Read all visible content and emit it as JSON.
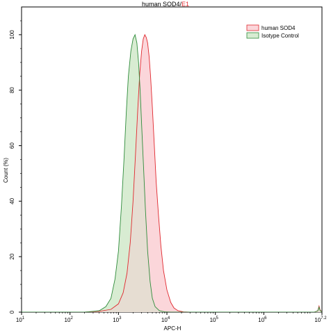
{
  "chart_data": {
    "type": "area",
    "title": "human SOD4",
    "title_separator": "/",
    "gate_label": "E1",
    "xlabel": "APC-H",
    "ylabel": "Count (%)",
    "x_scale": "log",
    "xlim": [
      10,
      15848932
    ],
    "ylim": [
      0,
      110
    ],
    "x_ticks": [
      {
        "value": 10,
        "base": "10",
        "exp": "1"
      },
      {
        "value": 100,
        "base": "10",
        "exp": "2"
      },
      {
        "value": 1000,
        "base": "10",
        "exp": "3"
      },
      {
        "value": 10000,
        "base": "10",
        "exp": "4"
      },
      {
        "value": 100000,
        "base": "10",
        "exp": "5"
      },
      {
        "value": 1000000,
        "base": "10",
        "exp": "6"
      },
      {
        "value": 15848932,
        "base": "10",
        "exp": "7.2"
      }
    ],
    "y_ticks": [
      0,
      20,
      40,
      60,
      80,
      100
    ],
    "grid": false,
    "legend_position": "top-right",
    "series": [
      {
        "name": "human SOD4",
        "line_color": "#e0282e",
        "fill_color": "#fbd6da",
        "points": [
          [
            10,
            0
          ],
          [
            200,
            0
          ],
          [
            400,
            0.3
          ],
          [
            700,
            1
          ],
          [
            1000,
            3
          ],
          [
            1250,
            7
          ],
          [
            1500,
            14
          ],
          [
            1750,
            25
          ],
          [
            2000,
            40
          ],
          [
            2250,
            57
          ],
          [
            2500,
            73
          ],
          [
            2750,
            86
          ],
          [
            3000,
            94
          ],
          [
            3250,
            98.5
          ],
          [
            3500,
            100
          ],
          [
            3750,
            99
          ],
          [
            4000,
            97
          ],
          [
            4300,
            92
          ],
          [
            4600,
            85
          ],
          [
            5000,
            74
          ],
          [
            5500,
            60
          ],
          [
            6000,
            47
          ],
          [
            6700,
            35
          ],
          [
            7500,
            24
          ],
          [
            8500,
            15
          ],
          [
            10000,
            8
          ],
          [
            12000,
            3.5
          ],
          [
            14000,
            1.5
          ],
          [
            17000,
            0.5
          ],
          [
            22000,
            0.1
          ],
          [
            30000,
            0
          ],
          [
            11000000,
            0
          ],
          [
            13000000,
            0.5
          ],
          [
            13800000,
            2.2
          ],
          [
            14500000,
            0.8
          ],
          [
            15848932,
            0
          ]
        ]
      },
      {
        "name": "Isotype Control",
        "line_color": "#2e8b3a",
        "fill_color": "#d8ecd2",
        "points": [
          [
            10,
            0
          ],
          [
            200,
            0
          ],
          [
            400,
            0.5
          ],
          [
            550,
            2
          ],
          [
            700,
            5
          ],
          [
            850,
            12
          ],
          [
            1000,
            22
          ],
          [
            1150,
            38
          ],
          [
            1300,
            55
          ],
          [
            1450,
            72
          ],
          [
            1600,
            85
          ],
          [
            1800,
            94
          ],
          [
            2000,
            98.5
          ],
          [
            2200,
            100
          ],
          [
            2400,
            97
          ],
          [
            2600,
            90
          ],
          [
            2800,
            80
          ],
          [
            3000,
            68
          ],
          [
            3300,
            52
          ],
          [
            3600,
            37
          ],
          [
            4000,
            22
          ],
          [
            4500,
            11
          ],
          [
            5000,
            5
          ],
          [
            5700,
            2
          ],
          [
            7000,
            0.5
          ],
          [
            9000,
            0.1
          ],
          [
            12000,
            0
          ],
          [
            11000000,
            0
          ],
          [
            13000000,
            0.5
          ],
          [
            13800000,
            1.8
          ],
          [
            14500000,
            0.6
          ],
          [
            15848932,
            0
          ]
        ]
      }
    ]
  },
  "colors": {
    "overlap_fill": "#e6ddd2",
    "axis": "#000000"
  }
}
